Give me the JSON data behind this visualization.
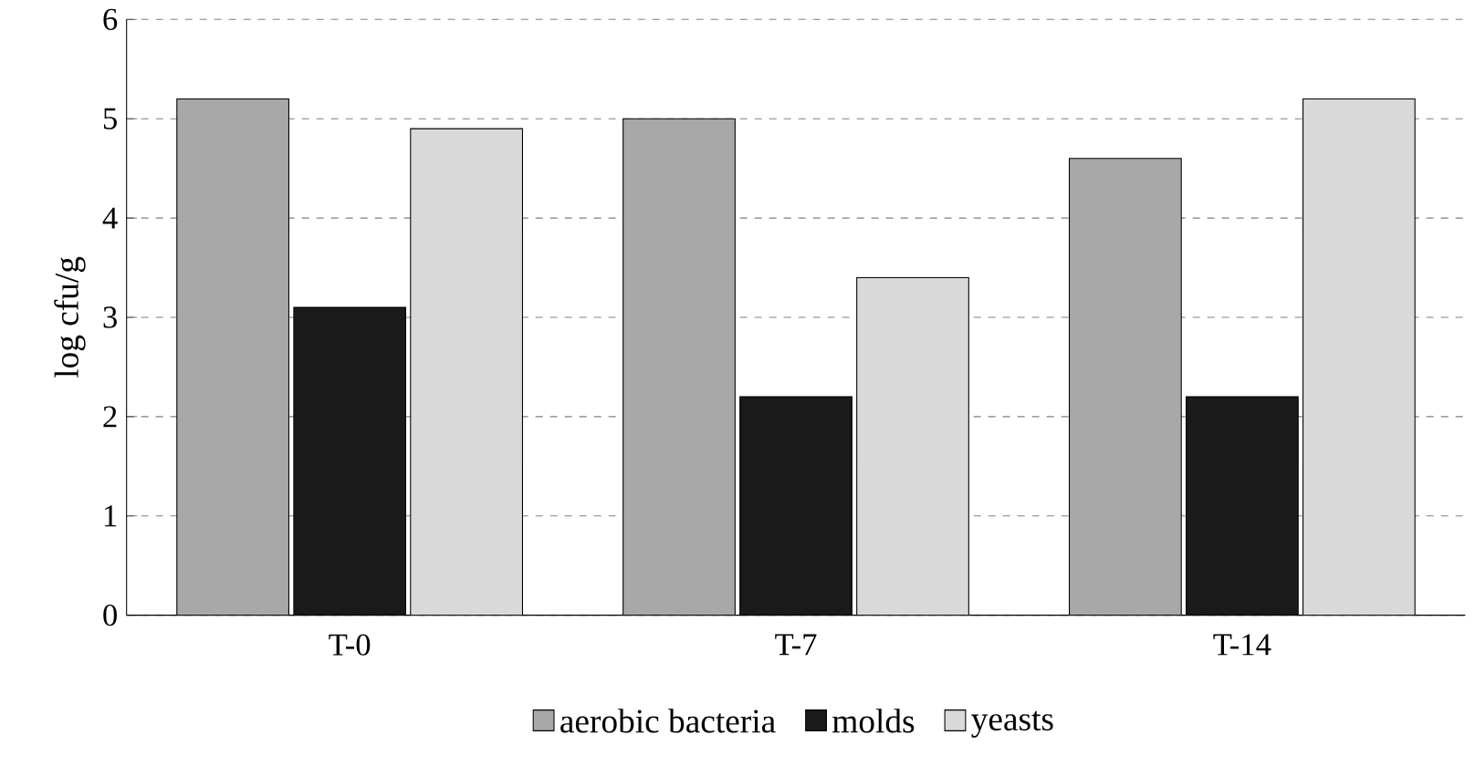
{
  "chart_data": {
    "type": "bar",
    "ylabel": "log cfu/g",
    "categories": [
      "T-0",
      "T-7",
      "T-14"
    ],
    "ylim": [
      0,
      6
    ],
    "yticks": [
      0,
      1,
      2,
      3,
      4,
      5,
      6
    ],
    "grid": "y",
    "legend": "bottom",
    "series": [
      {
        "name": "aerobic bacteria",
        "color": "#a8a8a8",
        "values": [
          5.2,
          5.0,
          4.6
        ]
      },
      {
        "name": "molds",
        "color": "#1a1a1a",
        "values": [
          3.1,
          2.2,
          2.2
        ]
      },
      {
        "name": "yeasts",
        "color": "#d9d9d9",
        "values": [
          4.9,
          3.4,
          5.2
        ]
      }
    ]
  }
}
